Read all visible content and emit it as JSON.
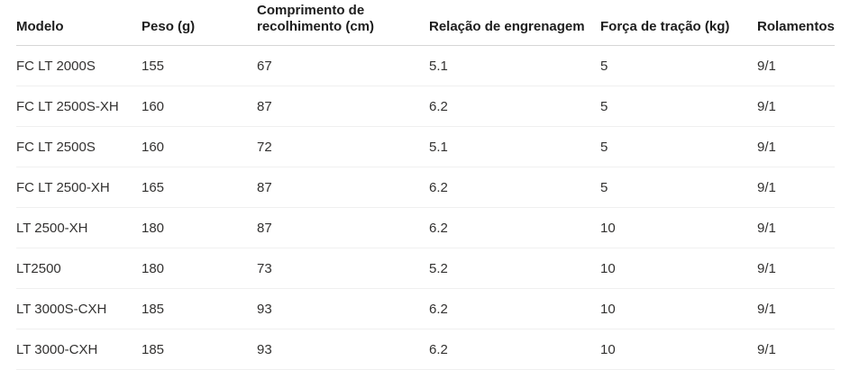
{
  "table": {
    "columns": [
      {
        "key": "modelo",
        "label": "Modelo"
      },
      {
        "key": "peso",
        "label": "Peso (g)"
      },
      {
        "key": "comprimento-recolhimento",
        "label": "Comprimento de recolhimento (cm)"
      },
      {
        "key": "relacao-engrenagem",
        "label": "Relação de engrenagem"
      },
      {
        "key": "forca-tracao",
        "label": "Força de tração (kg)"
      },
      {
        "key": "rolamentos",
        "label": "Rolamentos"
      }
    ],
    "rows": [
      [
        "FC LT 2000S",
        "155",
        "67",
        "5.1",
        "5",
        "9/1"
      ],
      [
        "FC LT 2500S-XH",
        "160",
        "87",
        "6.2",
        "5",
        "9/1"
      ],
      [
        "FC LT 2500S",
        "160",
        "72",
        "5.1",
        "5",
        "9/1"
      ],
      [
        "FC LT 2500-XH",
        "165",
        "87",
        "6.2",
        "5",
        "9/1"
      ],
      [
        "LT 2500-XH",
        "180",
        "87",
        "6.2",
        "10",
        "9/1"
      ],
      [
        "LT2500",
        "180",
        "73",
        "5.2",
        "10",
        "9/1"
      ],
      [
        "LT 3000S-CXH",
        "185",
        "93",
        "6.2",
        "10",
        "9/1"
      ],
      [
        "LT 3000-CXH",
        "185",
        "93",
        "6.2",
        "10",
        "9/1"
      ]
    ]
  },
  "colors": {
    "background": "#ffffff",
    "header_text": "#1d1d1d",
    "body_text": "#323130",
    "header_border": "#d6d6d6",
    "row_border": "#f0f0f0"
  }
}
